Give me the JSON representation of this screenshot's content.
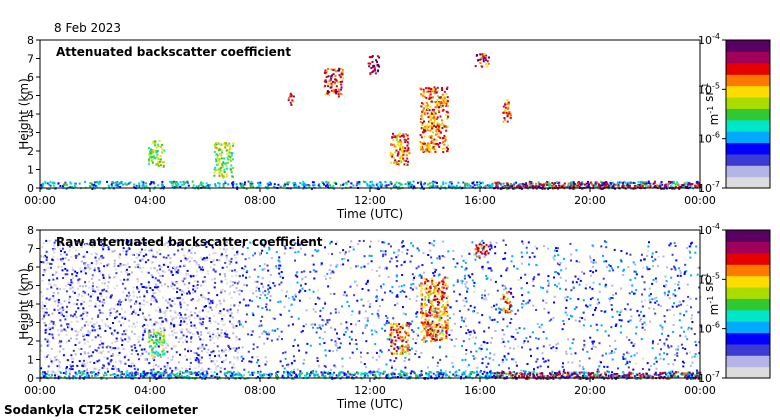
{
  "header": {
    "date": "8 Feb 2023"
  },
  "footer": {
    "instrument": "Sodankyla CT25K ceilometer"
  },
  "colors": {
    "scale": [
      "#dcdcdc",
      "#b4b4e6",
      "#3c3cd2",
      "#0000ff",
      "#00aaff",
      "#00e6c8",
      "#32c832",
      "#aadc00",
      "#ffdc00",
      "#ff7800",
      "#e60000",
      "#a0005a",
      "#5a0064"
    ],
    "axis": "#000000"
  },
  "chart_data": [
    {
      "type": "heatmap",
      "title": "Attenuated backscatter coefficient",
      "xlabel": "Time (UTC)",
      "ylabel": "Height (km)",
      "x_ticks": [
        "00:00",
        "04:00",
        "08:00",
        "12:00",
        "16:00",
        "20:00",
        "00:00"
      ],
      "y_ticks": [
        "0",
        "1",
        "2",
        "3",
        "4",
        "5",
        "6",
        "7",
        "8"
      ],
      "xlim_hours": [
        0,
        24
      ],
      "ylim": [
        0,
        8
      ],
      "colorbar": {
        "scale": "log",
        "range": [
          1e-07,
          0.0001
        ],
        "tick_labels": [
          "10-4",
          "10-5",
          "10-6",
          "10-7"
        ],
        "unit": "m-1 sr-1"
      },
      "features": [
        {
          "kind": "surface-layer",
          "t": [
            0,
            24
          ],
          "h": [
            0,
            0.4
          ],
          "level": 0.35
        },
        {
          "kind": "cloud",
          "t": [
            3.9,
            4.5
          ],
          "h": [
            1.2,
            2.6
          ],
          "level": 0.55
        },
        {
          "kind": "cloud",
          "t": [
            6.3,
            7.0
          ],
          "h": [
            0.6,
            2.5
          ],
          "level": 0.55
        },
        {
          "kind": "cloud",
          "t": [
            9.0,
            9.2
          ],
          "h": [
            4.5,
            5.2
          ],
          "level": 0.8
        },
        {
          "kind": "cloud",
          "t": [
            10.3,
            11.0
          ],
          "h": [
            5.0,
            6.5
          ],
          "level": 0.85
        },
        {
          "kind": "cloud",
          "t": [
            11.9,
            12.3
          ],
          "h": [
            6.2,
            7.2
          ],
          "level": 0.95
        },
        {
          "kind": "cloud",
          "t": [
            12.7,
            13.4
          ],
          "h": [
            1.3,
            3.0
          ],
          "level": 0.75
        },
        {
          "kind": "cloud",
          "t": [
            13.8,
            14.8
          ],
          "h": [
            2.0,
            5.5
          ],
          "level": 0.75
        },
        {
          "kind": "cloud",
          "t": [
            15.8,
            16.3
          ],
          "h": [
            6.6,
            7.3
          ],
          "level": 0.85
        },
        {
          "kind": "cloud",
          "t": [
            16.8,
            17.1
          ],
          "h": [
            3.6,
            4.8
          ],
          "level": 0.75
        },
        {
          "kind": "surface-layer",
          "t": [
            16.5,
            24
          ],
          "h": [
            0,
            0.35
          ],
          "level": 0.9
        }
      ]
    },
    {
      "type": "heatmap",
      "title": "Raw attenuated backscatter coefficient",
      "xlabel": "Time (UTC)",
      "ylabel": "Height (km)",
      "x_ticks": [
        "00:00",
        "04:00",
        "08:00",
        "12:00",
        "16:00",
        "20:00",
        "00:00"
      ],
      "y_ticks": [
        "0",
        "1",
        "2",
        "3",
        "4",
        "5",
        "6",
        "7",
        "8"
      ],
      "xlim_hours": [
        0,
        24
      ],
      "ylim": [
        0,
        8
      ],
      "colorbar": {
        "scale": "log",
        "range": [
          1e-07,
          0.0001
        ],
        "tick_labels": [
          "10-4",
          "10-5",
          "10-6",
          "10-7"
        ],
        "unit": "m-1 sr-1"
      },
      "features": [
        {
          "kind": "noise-light",
          "t": [
            0,
            7.2
          ],
          "h": [
            0,
            7.5
          ],
          "level": 0.1
        },
        {
          "kind": "noise-dense",
          "t": [
            7.2,
            24
          ],
          "h": [
            0,
            7.5
          ],
          "level": 0.2
        },
        {
          "kind": "surface-layer",
          "t": [
            0,
            24
          ],
          "h": [
            0,
            0.4
          ],
          "level": 0.35
        },
        {
          "kind": "cloud",
          "t": [
            3.9,
            4.5
          ],
          "h": [
            1.2,
            2.6
          ],
          "level": 0.55
        },
        {
          "kind": "cloud",
          "t": [
            12.7,
            13.4
          ],
          "h": [
            1.3,
            3.0
          ],
          "level": 0.75
        },
        {
          "kind": "cloud",
          "t": [
            13.8,
            14.8
          ],
          "h": [
            2.0,
            5.5
          ],
          "level": 0.75
        },
        {
          "kind": "cloud",
          "t": [
            15.8,
            16.3
          ],
          "h": [
            6.6,
            7.3
          ],
          "level": 0.85
        },
        {
          "kind": "cloud",
          "t": [
            16.8,
            17.1
          ],
          "h": [
            3.6,
            4.8
          ],
          "level": 0.75
        },
        {
          "kind": "surface-layer",
          "t": [
            16.5,
            24
          ],
          "h": [
            0,
            0.35
          ],
          "level": 0.9
        }
      ]
    }
  ]
}
